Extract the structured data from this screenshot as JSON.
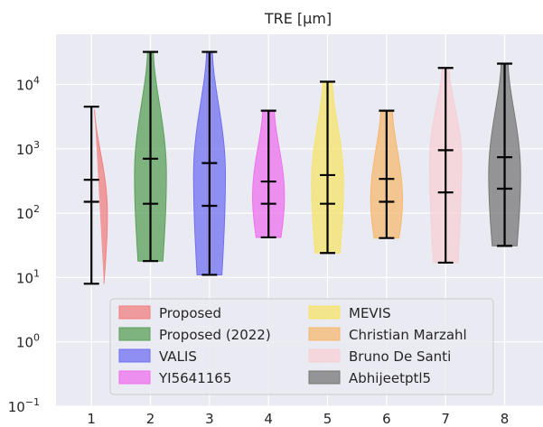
{
  "chart_data": {
    "type": "violin",
    "title": "TRE [μm]",
    "y_scale": "log",
    "ylim": [
      0.1,
      60000
    ],
    "y_ticks": [
      {
        "value": 0.1,
        "base": "10",
        "exp": "−1"
      },
      {
        "value": 1,
        "base": "10",
        "exp": "0"
      },
      {
        "value": 10,
        "base": "10",
        "exp": "1"
      },
      {
        "value": 100,
        "base": "10",
        "exp": "2"
      },
      {
        "value": 1000,
        "base": "10",
        "exp": "3"
      },
      {
        "value": 10000,
        "base": "10",
        "exp": "4"
      }
    ],
    "categories": [
      "1",
      "2",
      "3",
      "4",
      "5",
      "6",
      "7",
      "8"
    ],
    "grid": true,
    "legend_placement": "lower-center",
    "series": [
      {
        "name": "Proposed",
        "color": "#f08080",
        "min": 8,
        "median": 150,
        "mean": 330,
        "max": 4500,
        "mode": 100,
        "top_half_width": 0.05
      },
      {
        "name": "Proposed (2022)",
        "color": "#5aa05a",
        "min": 18,
        "median": 140,
        "mean": 700,
        "max": 32000,
        "mode": 400,
        "top_half_width": 0.05
      },
      {
        "name": "VALIS",
        "color": "#7070f0",
        "min": 11,
        "median": 130,
        "mean": 600,
        "max": 32000,
        "mode": 400,
        "top_half_width": 0.05
      },
      {
        "name": "YI5641165",
        "color": "#ee70ee",
        "min": 42,
        "median": 140,
        "mean": 310,
        "max": 3900,
        "mode": 180,
        "top_half_width": 0.1
      },
      {
        "name": "MEVIS",
        "color": "#f5e36a",
        "min": 24,
        "median": 140,
        "mean": 390,
        "max": 11000,
        "mode": 300,
        "top_half_width": 0.08
      },
      {
        "name": "Christian Marzahl",
        "color": "#f5b870",
        "min": 41,
        "median": 150,
        "mean": 340,
        "max": 3900,
        "mode": 160,
        "top_half_width": 0.1
      },
      {
        "name": "Bruno De Santi",
        "color": "#f5d0d5",
        "min": 17,
        "median": 210,
        "mean": 950,
        "max": 18000,
        "mode": 700,
        "top_half_width": 0.06
      },
      {
        "name": "Abhijeetptl5",
        "color": "#777777",
        "min": 31,
        "median": 240,
        "mean": 740,
        "max": 21000,
        "mode": 400,
        "top_half_width": 0.06
      }
    ]
  },
  "colors": {
    "plot_background": "#eaeaf2",
    "grid": "#ffffff",
    "whisker": "#000000",
    "text": "#262626"
  }
}
